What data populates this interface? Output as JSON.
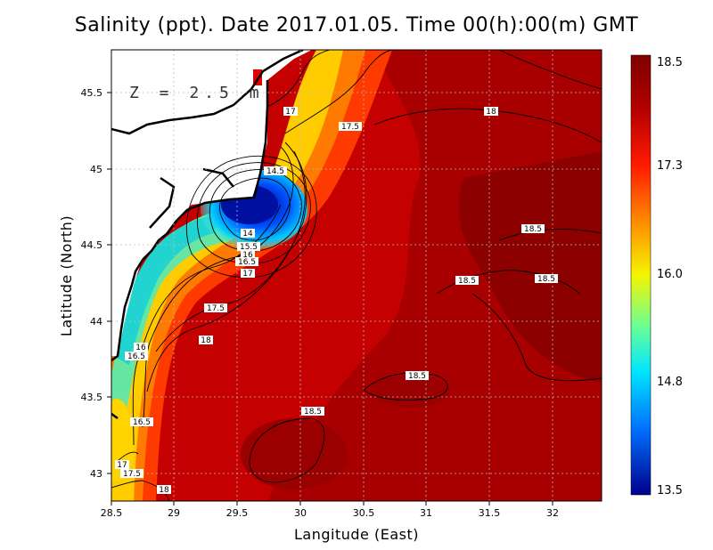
{
  "title": "Salinity (ppt). Date 2017.01.05. Time 00(h):00(m) GMT",
  "depth_label": "Z = 2.5 m",
  "xlabel": "Langitude (East)",
  "ylabel": "Latitude (North)",
  "x_ticks": [
    "28.5",
    "29",
    "29.5",
    "30",
    "30.5",
    "31",
    "31.5",
    "32"
  ],
  "y_ticks": [
    "43",
    "43.5",
    "44",
    "44.5",
    "45",
    "45.5"
  ],
  "colorbar": {
    "ticks": [
      "18.5",
      "17.3",
      "16.0",
      "14.8",
      "13.5"
    ],
    "range": [
      13.5,
      18.5
    ]
  },
  "contour_labels": [
    "17",
    "17.5",
    "18",
    "14.5",
    "14",
    "15.5",
    "16",
    "16.5",
    "17",
    "17.5",
    "18",
    "18.5",
    "18.5",
    "18.5",
    "18.5",
    "18.5",
    "16",
    "16.5",
    "16.5",
    "17",
    "17.5",
    "18"
  ],
  "chart_data": {
    "type": "heatmap",
    "variable": "Salinity (ppt)",
    "xlim": [
      28.5,
      32.4
    ],
    "ylim": [
      42.8,
      45.8
    ],
    "value_range": [
      13.5,
      18.5
    ],
    "grid": true
  }
}
